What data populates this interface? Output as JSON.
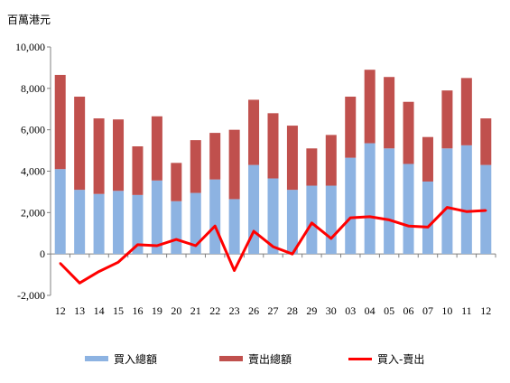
{
  "chart_data": {
    "type": "bar",
    "stacked": true,
    "unit_label": "百萬港元",
    "categories": [
      "12",
      "13",
      "14",
      "15",
      "16",
      "19",
      "20",
      "21",
      "22",
      "23",
      "26",
      "27",
      "28",
      "29",
      "30",
      "03",
      "04",
      "05",
      "06",
      "07",
      "10",
      "11",
      "12"
    ],
    "series": [
      {
        "name": "買入總額",
        "kind": "bar",
        "color": "#8db3e2",
        "values": [
          4100,
          3100,
          2900,
          3050,
          2850,
          3550,
          2550,
          2950,
          3600,
          2650,
          4300,
          3650,
          3100,
          3300,
          3300,
          4650,
          5350,
          5100,
          4350,
          3500,
          5100,
          5250,
          4300
        ]
      },
      {
        "name": "賣出總額",
        "kind": "bar",
        "color": "#c0504d",
        "values": [
          4550,
          4500,
          3650,
          3450,
          2350,
          3100,
          1850,
          2550,
          2250,
          3350,
          3150,
          3150,
          3100,
          1800,
          2450,
          2950,
          3550,
          3450,
          3000,
          2150,
          2800,
          3250,
          2250
        ]
      },
      {
        "name": "買入-賣出",
        "kind": "line",
        "color": "#ff0000",
        "values": [
          -450,
          -1400,
          -850,
          -400,
          450,
          400,
          700,
          400,
          1350,
          -800,
          1100,
          350,
          0,
          1500,
          750,
          1750,
          1800,
          1650,
          1350,
          1300,
          2250,
          2050,
          2100
        ]
      }
    ],
    "ylim": [
      -2000,
      10000
    ],
    "yticks": [
      -2000,
      0,
      2000,
      4000,
      6000,
      8000,
      10000
    ],
    "ytick_labels": [
      "-2,000",
      "0",
      "2,000",
      "4,000",
      "6,000",
      "8,000",
      "10,000"
    ],
    "grid": false,
    "legend_position": "bottom"
  }
}
